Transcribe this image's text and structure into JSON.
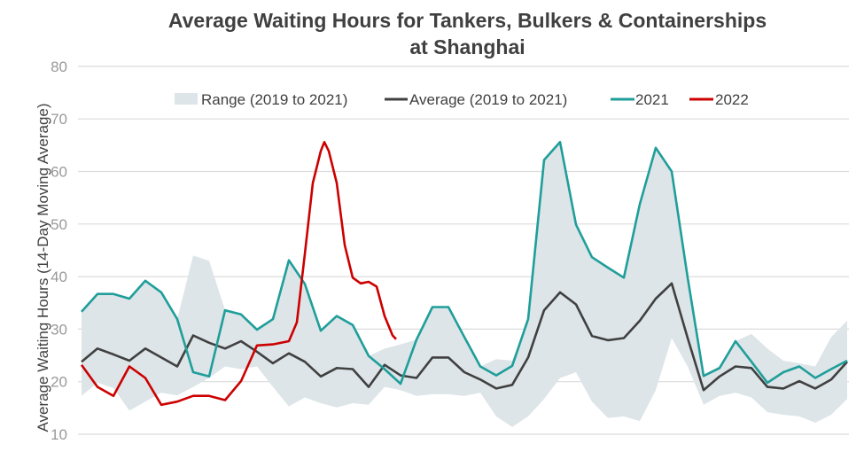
{
  "chart_data": {
    "type": "line",
    "title": "Average Waiting Hours for Tankers, Bulkers & Containerships",
    "subtitle": "at Shanghai",
    "ylabel": "Average Waiting Hours (14-Day Moving Average)",
    "xlabel": "",
    "ylim": [
      2.2,
      80
    ],
    "yticks": [
      10,
      20,
      30,
      40,
      50,
      60,
      70,
      80
    ],
    "grid": true,
    "legend_position": "top",
    "range": {
      "name": "Range (2019 to 2021)",
      "color": "#dde5e8",
      "upper": [
        33.3,
        36.7,
        36.7,
        35.8,
        39.2,
        37,
        31.9,
        44,
        43,
        33.6,
        32.8,
        29.9,
        31.9,
        43.1,
        38.6,
        29.7,
        32.5,
        30.8,
        24.9,
        26.3,
        27.1,
        28,
        34.2,
        34.2,
        28.5,
        22.9,
        24.3,
        24,
        31.9,
        62.2,
        65.6,
        49.9,
        43.7,
        41.7,
        39.8,
        53.8,
        64.5,
        60,
        39.8,
        21.2,
        23,
        27.7,
        29.1,
        26.3,
        24,
        23.5,
        22.9,
        28.5,
        31.6
      ],
      "lower": [
        17.3,
        19.8,
        18.8,
        14.5,
        16.2,
        17.9,
        17.4,
        19,
        20.7,
        22.9,
        22.4,
        22.9,
        19,
        15.3,
        17,
        15.9,
        15.1,
        15.9,
        15.6,
        19,
        18.4,
        17.3,
        17.6,
        17.6,
        17.3,
        17.9,
        13.4,
        11.4,
        13.4,
        16.7,
        20.7,
        21.8,
        16.2,
        13.1,
        13.4,
        12.5,
        18.4,
        28.3,
        22.9,
        15.6,
        17.3,
        17.9,
        17,
        14.2,
        13.7,
        13.4,
        12.2,
        13.7,
        16.7
      ]
    },
    "series": [
      {
        "name": "Average (2019 to 2021)",
        "color": "#404040",
        "values": [
          23.8,
          26.3,
          25.2,
          24,
          26.3,
          24.6,
          22.9,
          28.8,
          27.4,
          26.3,
          27.7,
          25.7,
          23.5,
          25.4,
          23.8,
          21,
          22.6,
          22.4,
          19,
          23.2,
          21.2,
          20.7,
          24.6,
          24.6,
          21.8,
          20.4,
          18.7,
          19.4,
          24.6,
          33.6,
          37,
          34.7,
          28.7,
          27.9,
          28.3,
          31.6,
          35.8,
          38.7,
          28.3,
          18.4,
          21,
          22.9,
          22.6,
          19,
          18.7,
          20.1,
          18.7,
          20.4,
          23.8
        ]
      },
      {
        "name": "2021",
        "color": "#1f9e9a",
        "values": [
          33.3,
          36.7,
          36.7,
          35.8,
          39.2,
          37,
          31.9,
          21.8,
          21,
          33.6,
          32.8,
          29.9,
          31.9,
          43.1,
          38.6,
          29.7,
          32.5,
          30.8,
          24.9,
          22.4,
          19.6,
          28,
          34.2,
          34.2,
          28.5,
          22.9,
          21.2,
          23,
          31.9,
          62.2,
          65.6,
          49.9,
          43.7,
          41.7,
          39.8,
          53.8,
          64.5,
          60,
          39.8,
          21.1,
          22.6,
          27.7,
          23.8,
          19.8,
          21.8,
          22.9,
          20.7,
          22.4,
          24
        ]
      },
      {
        "name": "2022",
        "color": "#cc0000",
        "points": [
          [
            0,
            23.2
          ],
          [
            1,
            19
          ],
          [
            2,
            17.3
          ],
          [
            3,
            22.9
          ],
          [
            4,
            20.7
          ],
          [
            5,
            15.6
          ],
          [
            6,
            16.2
          ],
          [
            7,
            17.3
          ],
          [
            8,
            17.3
          ],
          [
            9,
            16.5
          ],
          [
            10,
            20.1
          ],
          [
            11,
            26.9
          ],
          [
            12,
            27.1
          ],
          [
            13,
            27.7
          ],
          [
            13.5,
            31.3
          ],
          [
            14,
            44.3
          ],
          [
            14.5,
            57.8
          ],
          [
            15,
            63.9
          ],
          [
            15.22,
            65.6
          ],
          [
            15.5,
            63.9
          ],
          [
            16,
            57.8
          ],
          [
            16.5,
            46
          ],
          [
            17,
            39.8
          ],
          [
            17.5,
            38.7
          ],
          [
            18,
            39
          ],
          [
            18.5,
            38.1
          ],
          [
            19,
            32.5
          ],
          [
            19.5,
            28.8
          ],
          [
            19.72,
            28.1
          ]
        ]
      }
    ]
  }
}
